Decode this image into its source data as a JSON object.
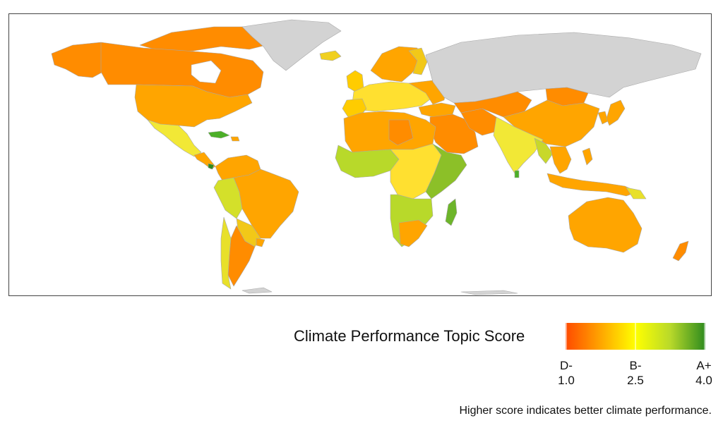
{
  "legend": {
    "title": "Climate Performance Topic Score",
    "ticks": [
      {
        "grade": "D-",
        "value": "1.0"
      },
      {
        "grade": "B-",
        "value": "2.5"
      },
      {
        "grade": "A+",
        "value": "4.0"
      }
    ],
    "colors": [
      "#ff4a00",
      "#ffa500",
      "#ffff00",
      "#b8d92a",
      "#2e8b1e"
    ]
  },
  "caption": "Higher score indicates better climate performance.",
  "colors": {
    "no_data": "#d3d3d3",
    "border": "#9a9a9a",
    "frame": "#444444"
  }
}
